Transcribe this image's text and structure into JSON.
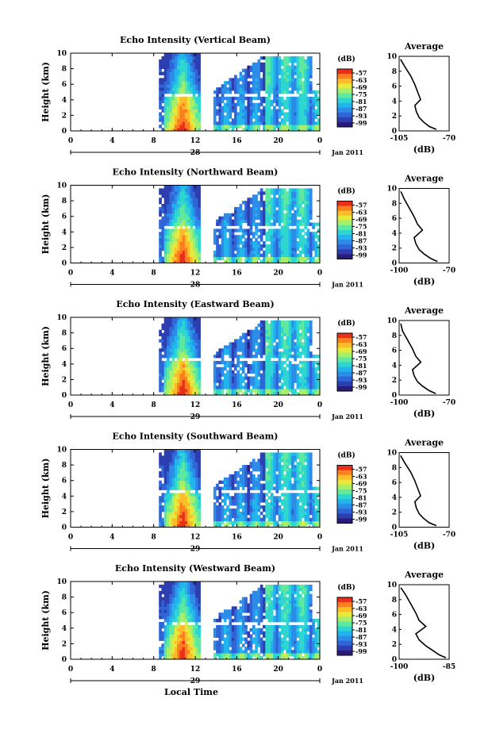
{
  "chart_data": [
    {
      "type": "heatmap",
      "title": "Echo Intensity (Vertical Beam)",
      "ylabel": "Height (km)",
      "xticks": [
        "0",
        "4",
        "8",
        "12",
        "16",
        "20",
        "0"
      ],
      "yticks": [
        "0",
        "2",
        "4",
        "6",
        "8",
        "10"
      ],
      "xlim": [
        0,
        24
      ],
      "ylim": [
        0,
        10
      ],
      "date_mark": "28",
      "date_label": "Jan 2011",
      "colorbar": {
        "unit": "(dB)",
        "ticks": [
          "-57",
          "-63",
          "-69",
          "-75",
          "-81",
          "-87",
          "-93",
          "-99"
        ]
      },
      "average": {
        "title": "Average",
        "xlabel": "(dB)",
        "xticks": [
          "-105",
          "-70"
        ],
        "xlim": [
          -105,
          -70
        ],
        "yticks": [
          "0",
          "2",
          "4",
          "6",
          "8",
          "10"
        ],
        "ylim": [
          0,
          10
        ],
        "profile": [
          [
            -79,
            0.2
          ],
          [
            -84,
            0.6
          ],
          [
            -88,
            1.2
          ],
          [
            -91,
            1.8
          ],
          [
            -93,
            2.6
          ],
          [
            -94,
            3.4
          ],
          [
            -90,
            4.2
          ],
          [
            -92,
            5.2
          ],
          [
            -94,
            6.2
          ],
          [
            -97,
            7.4
          ],
          [
            -101,
            8.6
          ],
          [
            -104,
            9.6
          ]
        ]
      }
    },
    {
      "type": "heatmap",
      "title": "Echo Intensity (Northward Beam)",
      "ylabel": "Height (km)",
      "xticks": [
        "0",
        "4",
        "8",
        "12",
        "16",
        "20",
        "0"
      ],
      "yticks": [
        "0",
        "2",
        "4",
        "6",
        "8",
        "10"
      ],
      "xlim": [
        0,
        24
      ],
      "ylim": [
        0,
        10
      ],
      "date_mark": "28",
      "date_label": "Jan 2011",
      "colorbar": {
        "unit": "(dB)",
        "ticks": [
          "-57",
          "-63",
          "-69",
          "-75",
          "-81",
          "-87",
          "-93",
          "-99"
        ]
      },
      "average": {
        "title": "Average",
        "xlabel": "(dB)",
        "xticks": [
          "-100",
          "-70"
        ],
        "xlim": [
          -100,
          -70
        ],
        "yticks": [
          "0",
          "2",
          "4",
          "6",
          "8",
          "10"
        ],
        "ylim": [
          0,
          10
        ],
        "profile": [
          [
            -77,
            0.2
          ],
          [
            -81,
            0.6
          ],
          [
            -85,
            1.2
          ],
          [
            -88,
            1.8
          ],
          [
            -90,
            2.6
          ],
          [
            -91,
            3.4
          ],
          [
            -86,
            4.4
          ],
          [
            -89,
            5.2
          ],
          [
            -91,
            6.2
          ],
          [
            -94,
            7.4
          ],
          [
            -97,
            8.6
          ],
          [
            -99,
            9.6
          ]
        ]
      }
    },
    {
      "type": "heatmap",
      "title": "Echo Intensity (Eastward Beam)",
      "ylabel": "Height (km)",
      "xticks": [
        "0",
        "4",
        "8",
        "12",
        "16",
        "20",
        "0"
      ],
      "yticks": [
        "0",
        "2",
        "4",
        "6",
        "8",
        "10"
      ],
      "xlim": [
        0,
        24
      ],
      "ylim": [
        0,
        10
      ],
      "date_mark": "29",
      "date_label": "Jan 2011",
      "colorbar": {
        "unit": "(dB)",
        "ticks": [
          "-57",
          "-63",
          "-69",
          "-75",
          "-81",
          "-87",
          "-93",
          "-99"
        ]
      },
      "average": {
        "title": "Average",
        "xlabel": "(dB)",
        "xticks": [
          "-100",
          "-70"
        ],
        "xlim": [
          -100,
          -70
        ],
        "yticks": [
          "0",
          "2",
          "4",
          "6",
          "8",
          "10"
        ],
        "ylim": [
          0,
          10
        ],
        "profile": [
          [
            -78,
            0.2
          ],
          [
            -82,
            0.6
          ],
          [
            -86,
            1.2
          ],
          [
            -89,
            1.8
          ],
          [
            -91,
            2.6
          ],
          [
            -92,
            3.4
          ],
          [
            -87,
            4.4
          ],
          [
            -90,
            5.2
          ],
          [
            -92,
            6.2
          ],
          [
            -95,
            7.4
          ],
          [
            -98,
            8.6
          ],
          [
            -99,
            9.6
          ]
        ]
      }
    },
    {
      "type": "heatmap",
      "title": "Echo Intensity (Southward Beam)",
      "ylabel": "Height (km)",
      "xticks": [
        "0",
        "4",
        "8",
        "12",
        "16",
        "20",
        "0"
      ],
      "yticks": [
        "0",
        "2",
        "4",
        "6",
        "8",
        "10"
      ],
      "xlim": [
        0,
        24
      ],
      "ylim": [
        0,
        10
      ],
      "date_mark": "29",
      "date_label": "Jan 2011",
      "colorbar": {
        "unit": "(dB)",
        "ticks": [
          "-57",
          "-63",
          "-69",
          "-75",
          "-81",
          "-87",
          "-93",
          "-99"
        ]
      },
      "average": {
        "title": "Average",
        "xlabel": "(dB)",
        "xticks": [
          "-105",
          "-70"
        ],
        "xlim": [
          -105,
          -70
        ],
        "yticks": [
          "0",
          "2",
          "4",
          "6",
          "8",
          "10"
        ],
        "ylim": [
          0,
          10
        ],
        "profile": [
          [
            -79,
            0.2
          ],
          [
            -84,
            0.6
          ],
          [
            -88,
            1.2
          ],
          [
            -91,
            1.8
          ],
          [
            -93,
            2.6
          ],
          [
            -94,
            3.4
          ],
          [
            -90,
            4.2
          ],
          [
            -92,
            5.2
          ],
          [
            -94,
            6.2
          ],
          [
            -97,
            7.4
          ],
          [
            -101,
            8.6
          ],
          [
            -104,
            9.6
          ]
        ]
      }
    },
    {
      "type": "heatmap",
      "title": "Echo Intensity (Westward Beam)",
      "ylabel": "Height (km)",
      "xticks": [
        "0",
        "4",
        "8",
        "12",
        "16",
        "20",
        "0"
      ],
      "yticks": [
        "0",
        "2",
        "4",
        "6",
        "8",
        "10"
      ],
      "xlim": [
        0,
        24
      ],
      "ylim": [
        0,
        10
      ],
      "date_mark": "29",
      "date_label": "Jan 2011",
      "xlabel": "Local Time",
      "colorbar": {
        "unit": "(dB)",
        "ticks": [
          "-57",
          "-63",
          "-69",
          "-75",
          "-81",
          "-87",
          "-93",
          "-99"
        ]
      },
      "average": {
        "title": "Average",
        "xlabel": "(dB)",
        "xticks": [
          "-100",
          "-85"
        ],
        "xlim": [
          -100,
          -85
        ],
        "yticks": [
          "0",
          "2",
          "4",
          "6",
          "8",
          "10"
        ],
        "ylim": [
          0,
          10
        ],
        "profile": [
          [
            -86,
            0.2
          ],
          [
            -88,
            0.6
          ],
          [
            -90,
            1.2
          ],
          [
            -92,
            1.8
          ],
          [
            -94,
            2.6
          ],
          [
            -95,
            3.4
          ],
          [
            -92,
            4.4
          ],
          [
            -94,
            5.2
          ],
          [
            -95,
            6.2
          ],
          [
            -96.5,
            7.4
          ],
          [
            -98,
            8.6
          ],
          [
            -99.5,
            9.6
          ]
        ]
      }
    }
  ],
  "colors": {
    "scale": [
      "#2a1b78",
      "#2d3fb0",
      "#2f65d6",
      "#2c8ce8",
      "#22b4ec",
      "#2fd6d0",
      "#5fe8a0",
      "#a7ef6a",
      "#e6ea3c",
      "#fdbc2a",
      "#fb7f1e",
      "#e8301a"
    ]
  }
}
